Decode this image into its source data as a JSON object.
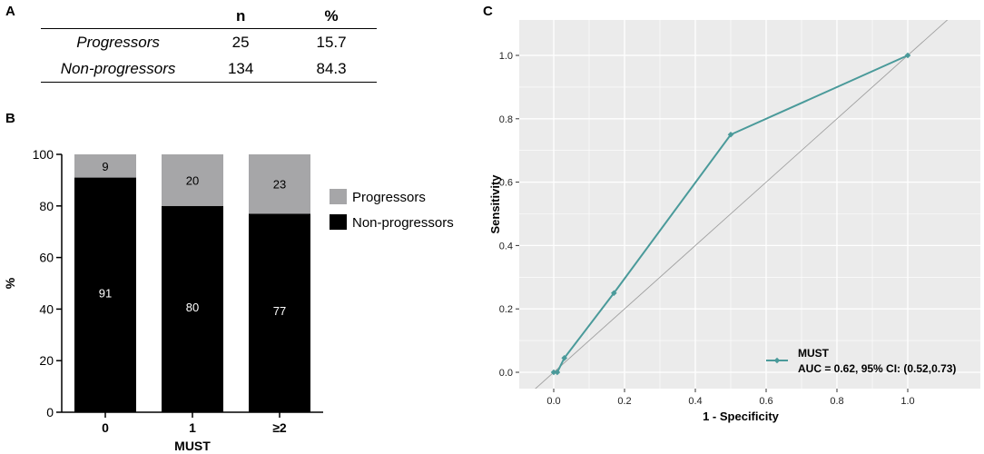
{
  "panels": {
    "a": "A",
    "b": "B",
    "c": "C"
  },
  "table": {
    "headers": [
      "",
      "n",
      "%"
    ],
    "rows": [
      {
        "label": "Progressors",
        "n": "25",
        "pct": "15.7"
      },
      {
        "label": "Non-progressors",
        "n": "134",
        "pct": "84.3"
      }
    ]
  },
  "chart_data": [
    {
      "type": "bar",
      "stacked": true,
      "categories": [
        "0",
        "1",
        "≥2"
      ],
      "series": [
        {
          "name": "Non-progressors",
          "values": [
            91,
            80,
            77
          ],
          "color": "#000000"
        },
        {
          "name": "Progressors",
          "values": [
            9,
            20,
            23
          ],
          "color": "#a6a6a8"
        }
      ],
      "xlabel": "MUST",
      "ylabel": "%",
      "ylim": [
        0,
        100
      ],
      "yticks": [
        0,
        20,
        40,
        60,
        80,
        100
      ],
      "legend": {
        "placement": "right",
        "entries": [
          "Progressors",
          "Non-progressors"
        ]
      }
    },
    {
      "type": "line",
      "xlabel": "1 - Specificity",
      "ylabel": "Sensitivity",
      "xlim": [
        0,
        1
      ],
      "ylim": [
        0,
        1
      ],
      "xticks": [
        "0.0",
        "0.2",
        "0.4",
        "0.6",
        "0.8",
        "1.0"
      ],
      "yticks": [
        "0.0",
        "0.2",
        "0.4",
        "0.6",
        "0.8",
        "1.0"
      ],
      "grid": true,
      "background": "#ebebeb",
      "series": [
        {
          "name": "MUST",
          "color": "#4a9a9a",
          "x": [
            0.0,
            0.01,
            0.03,
            0.17,
            0.5,
            1.0
          ],
          "y": [
            0.0,
            0.0,
            0.045,
            0.25,
            0.75,
            1.0
          ]
        }
      ],
      "reference_line": {
        "x": [
          0,
          1
        ],
        "y": [
          0,
          1
        ],
        "color": "#a0a0a0"
      },
      "legend": {
        "placement": "bottom-right",
        "title": "MUST",
        "entry": "AUC = 0.62, 95% CI: (0.52,0.73)"
      }
    }
  ]
}
